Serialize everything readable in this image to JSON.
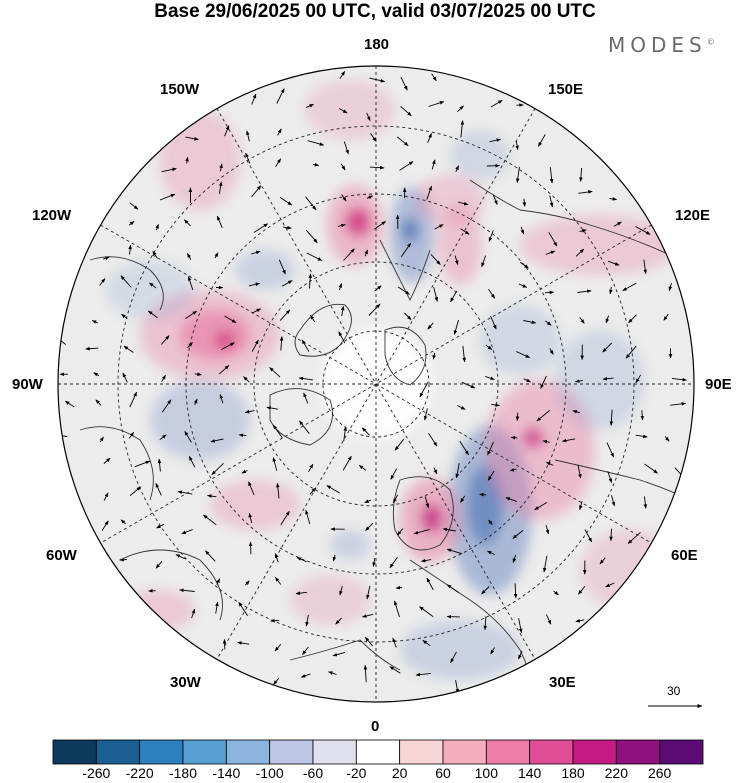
{
  "title": "Base 29/06/2025 00 UTC, valid 03/07/2025 00 UTC",
  "brand": {
    "text": "MODES",
    "mark": "©"
  },
  "map": {
    "projection": "north-polar-stereographic",
    "longitude_labels": {
      "top": "180",
      "bottom": "0",
      "left": "90W",
      "right": "90E",
      "upper_left": "150W",
      "upper_left2": "120W",
      "upper_right": "150E",
      "upper_right2": "120E",
      "lower_left": "60W",
      "lower_left2": "30W",
      "lower_right": "60E",
      "lower_right2": "30E"
    },
    "reference_vector": {
      "label": "30"
    },
    "colors": {
      "land_background": "#ececec",
      "coastline": "#333333",
      "graticule": "#222222",
      "positive": "#e8769e",
      "negative": "#7f96c8"
    }
  },
  "colorbar": {
    "colors": [
      "#0c3a5c",
      "#1a5f92",
      "#2c80bd",
      "#579fd0",
      "#8db4dc",
      "#bdc6e3",
      "#e0e0ef",
      "#ffffff",
      "#f9d6d6",
      "#f4aec0",
      "#ec7ea8",
      "#e04c98",
      "#c41a86",
      "#901080",
      "#5c0a74"
    ],
    "tick_labels": [
      "-260",
      "-220",
      "-180",
      "-140",
      "-100",
      "-60",
      "-20",
      "20",
      "60",
      "100",
      "140",
      "180",
      "220",
      "260"
    ]
  }
}
